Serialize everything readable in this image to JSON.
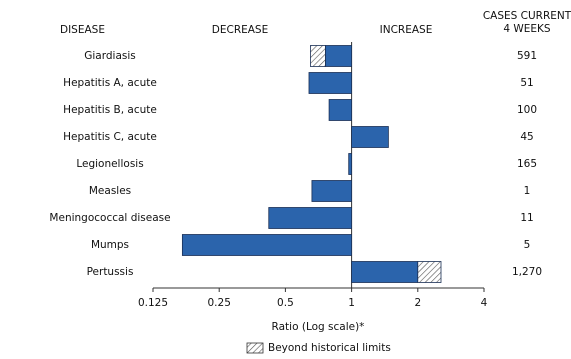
{
  "chart_data": {
    "type": "bar",
    "orientation": "horizontal",
    "log_scale": true,
    "color": "#2b64ac",
    "headers": {
      "disease": "DISEASE",
      "decrease": "DECREASE",
      "increase": "INCREASE",
      "cases": [
        "CASES CURRENT",
        "4 WEEKS"
      ]
    },
    "categories": [
      "Giardiasis",
      "Hepatitis A, acute",
      "Hepatitis B, acute",
      "Hepatitis C, acute",
      "Legionellosis",
      "Measles",
      "Meningococcal disease",
      "Mumps",
      "Pertussis"
    ],
    "values": [
      0.65,
      0.64,
      0.79,
      1.47,
      0.97,
      0.66,
      0.42,
      0.17,
      2.55
    ],
    "historical_limits": [
      0.76,
      null,
      null,
      null,
      null,
      null,
      null,
      null,
      2.0
    ],
    "cases": {
      "values": [
        591,
        51,
        100,
        45,
        165,
        1,
        11,
        5,
        1270
      ],
      "value_labels": [
        "591",
        "51",
        "100",
        "45",
        "165",
        "1",
        "11",
        "5",
        "1,270"
      ]
    },
    "xlim": [
      0.125,
      4
    ],
    "xticks": [
      0.125,
      0.25,
      0.5,
      1,
      2,
      4
    ],
    "xlabel": "Ratio (Log scale)*",
    "legend": "Beyond historical limits"
  }
}
